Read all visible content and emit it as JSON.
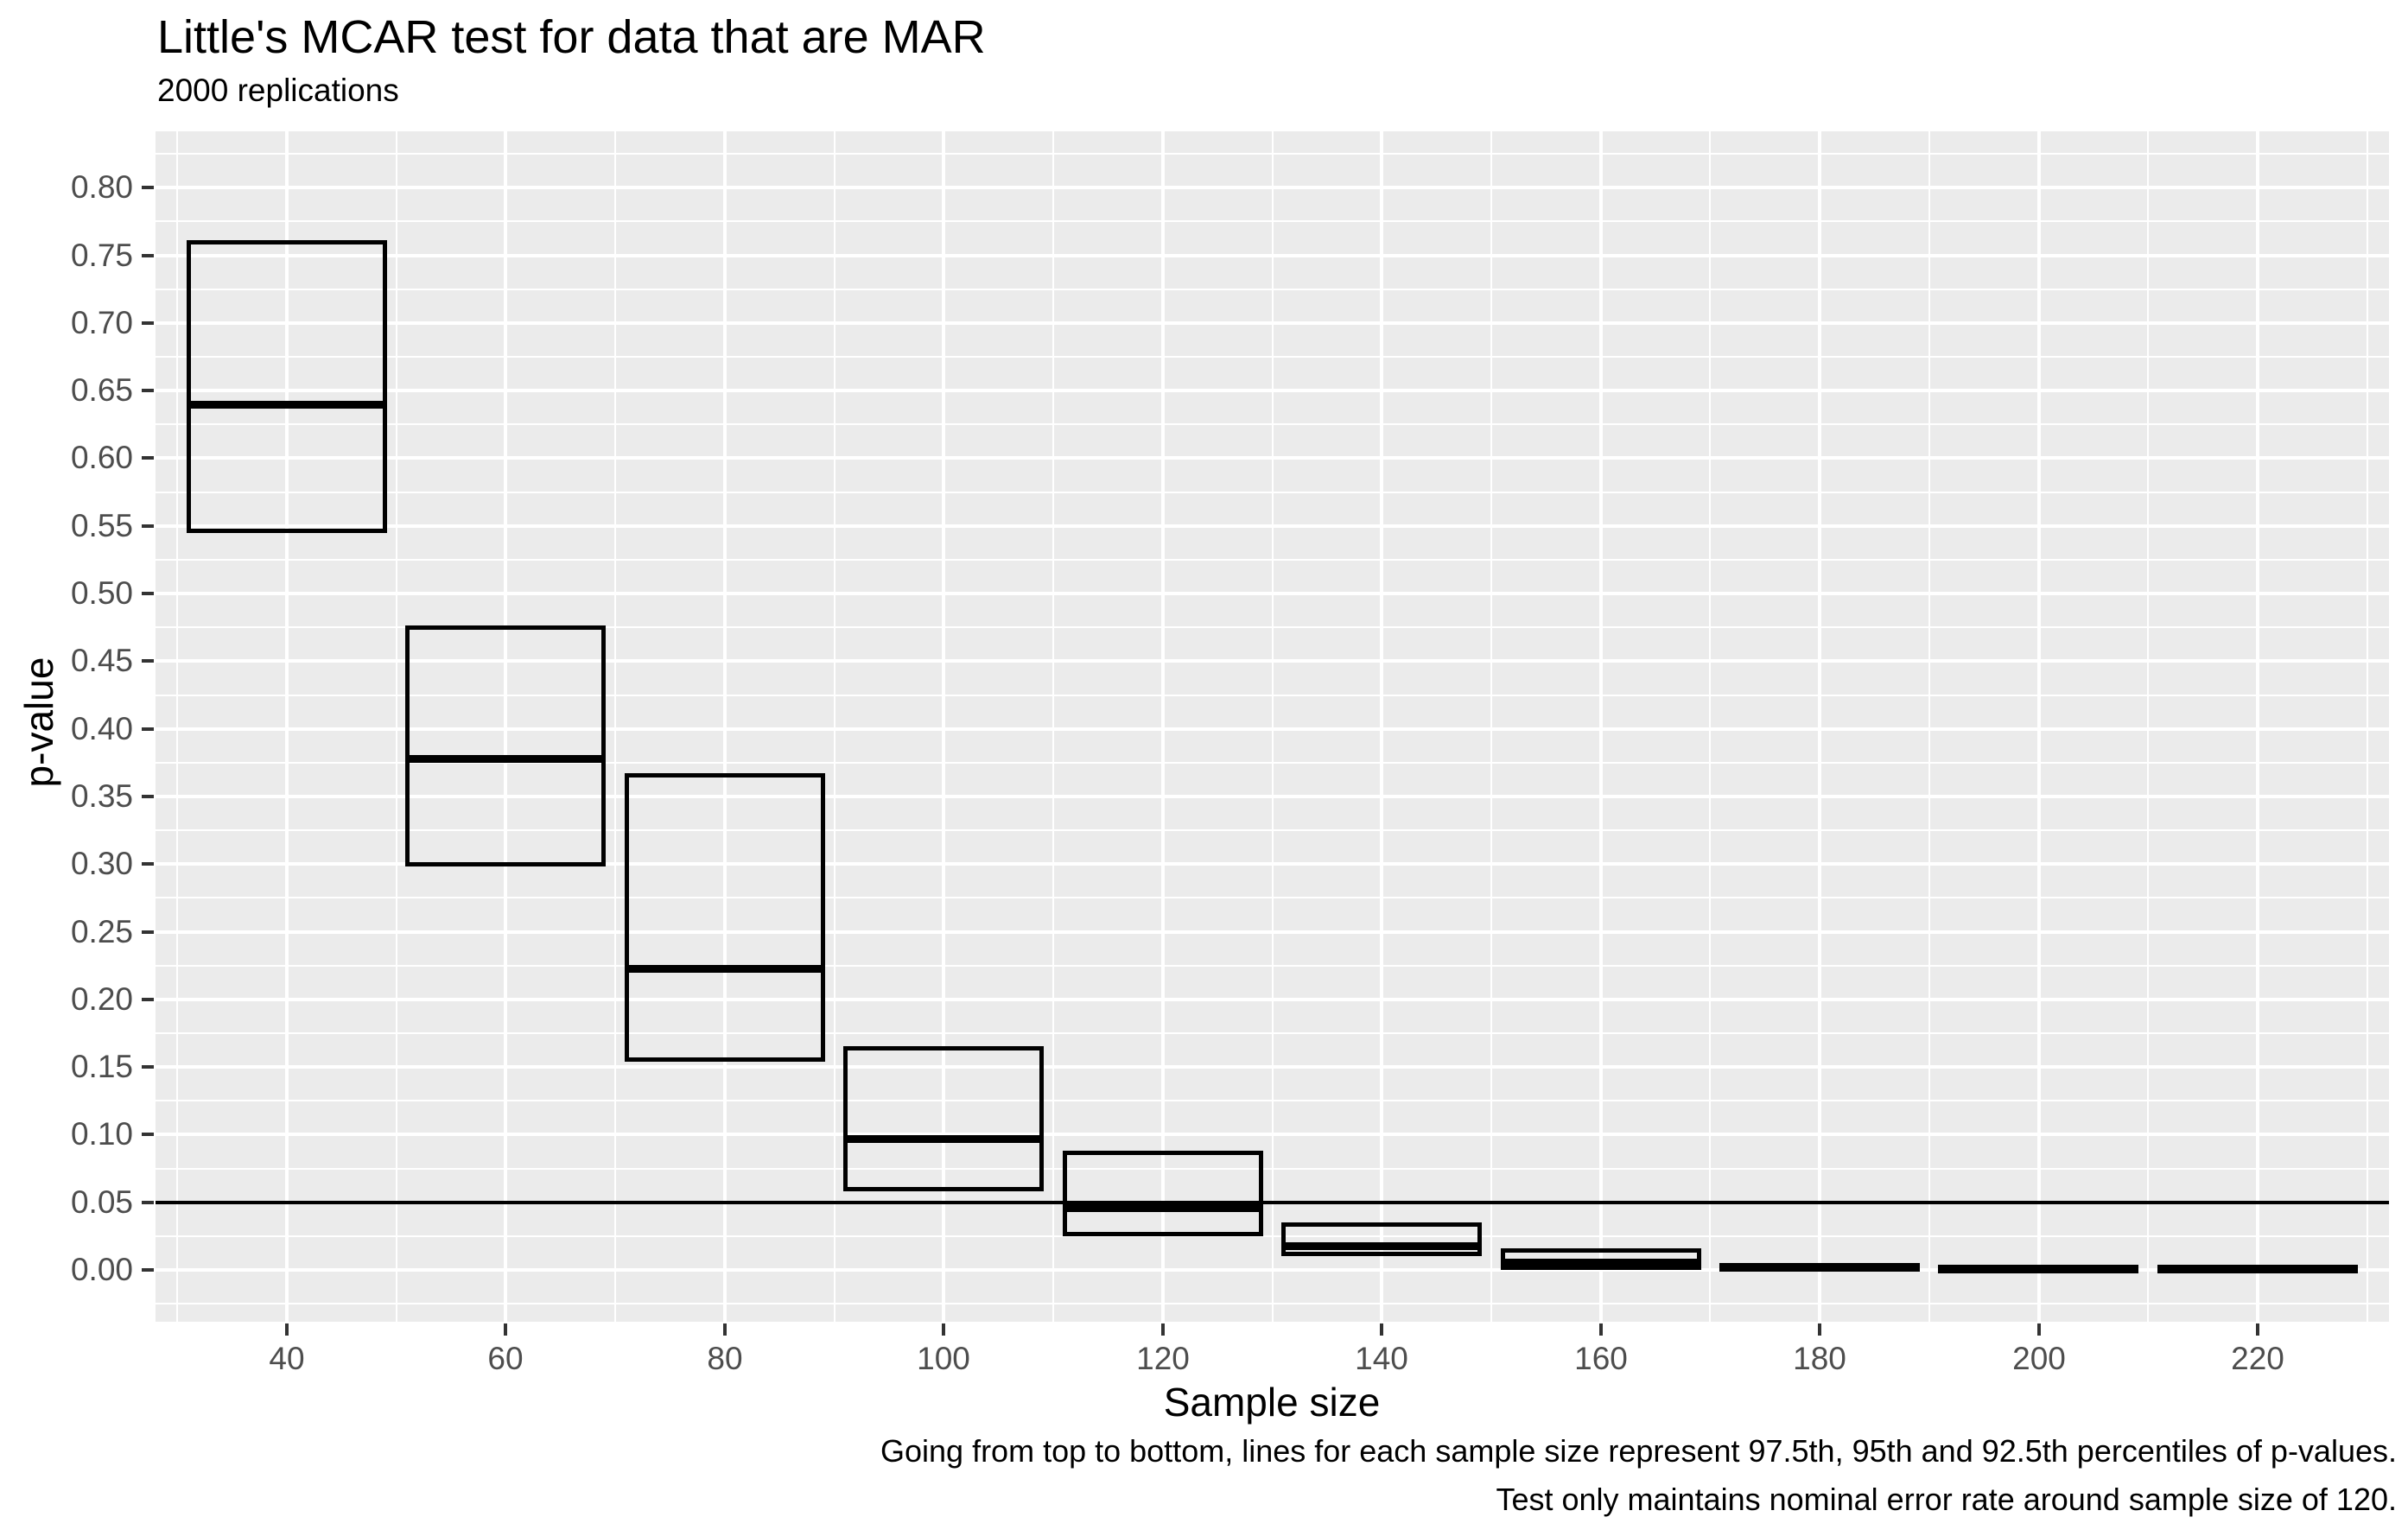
{
  "chart_data": {
    "type": "crossbar",
    "title": "Little's MCAR test for data that are MAR",
    "subtitle": "2000 replications",
    "xlabel": "Sample size",
    "ylabel": "p-value",
    "caption": [
      "Going from top to bottom, lines for each sample size represent 97.5th, 95th and 92.5th percentiles of p-values.",
      "Test only maintains nominal error rate around sample size of 120."
    ],
    "x_ticks": [
      40,
      60,
      80,
      100,
      120,
      140,
      160,
      180,
      200,
      220
    ],
    "y_ticks": [
      0.0,
      0.05,
      0.1,
      0.15,
      0.2,
      0.25,
      0.3,
      0.35,
      0.4,
      0.45,
      0.5,
      0.55,
      0.6,
      0.65,
      0.7,
      0.75,
      0.8
    ],
    "xlim": [
      28,
      232
    ],
    "ylim": [
      -0.0383,
      0.8417
    ],
    "x_major_step": 20,
    "x_minor_offset": 10,
    "y_major_step": 0.05,
    "y_minor_step": 0.025,
    "grid": true,
    "legend_position": "none",
    "reference_line_y": 0.05,
    "box_half_width": 9,
    "boxes": [
      {
        "x": 40,
        "upper": 0.76,
        "mid": 0.64,
        "lower": 0.547
      },
      {
        "x": 60,
        "upper": 0.475,
        "mid": 0.378,
        "lower": 0.3
      },
      {
        "x": 80,
        "upper": 0.366,
        "mid": 0.223,
        "lower": 0.156
      },
      {
        "x": 100,
        "upper": 0.164,
        "mid": 0.097,
        "lower": 0.06
      },
      {
        "x": 120,
        "upper": 0.087,
        "mid": 0.046,
        "lower": 0.027
      },
      {
        "x": 140,
        "upper": 0.034,
        "mid": 0.018,
        "lower": 0.012
      },
      {
        "x": 160,
        "upper": 0.015,
        "mid": 0.006,
        "lower": 0.002
      },
      {
        "x": 180,
        "upper": 0.004,
        "mid": 0.0025,
        "lower": 0.001
      },
      {
        "x": 200,
        "upper": 0.0025,
        "mid": 0.0012,
        "lower": 0.0003
      },
      {
        "x": 220,
        "upper": 0.0025,
        "mid": 0.0012,
        "lower": 0.0003
      }
    ],
    "colors": {
      "background": "#FFFFFF",
      "panel_bg": "#EBEBEB",
      "gridline": "#FFFFFF",
      "box_stroke": "#000000",
      "reference_line": "#000000",
      "tick_label": "#4D4D4D",
      "tick_mark": "#333333",
      "text": "#000000"
    }
  }
}
